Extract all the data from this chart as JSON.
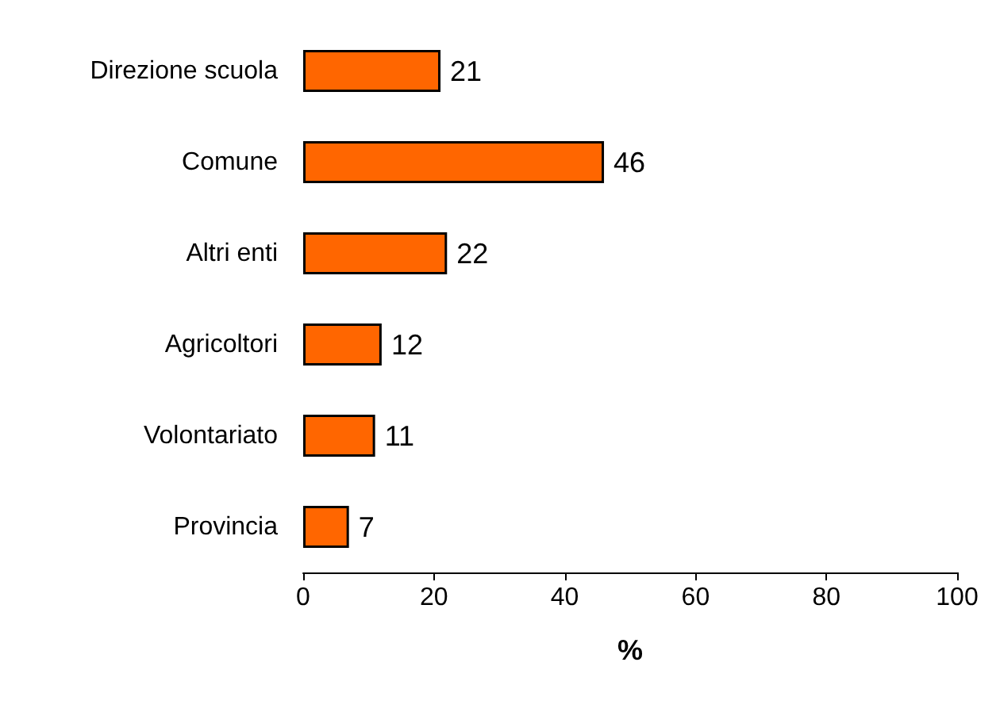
{
  "chart_data": {
    "type": "bar",
    "orientation": "horizontal",
    "xlabel": "%",
    "categories": [
      "Direzione scuola",
      "Comune",
      "Altri enti",
      "Agricoltori",
      "Volontariato",
      "Provincia"
    ],
    "values": [
      21,
      46,
      22,
      12,
      11,
      7
    ],
    "color": "#ff6600",
    "xlim": [
      0,
      100
    ],
    "xticks": [
      0,
      20,
      40,
      60,
      80,
      100
    ],
    "grid": false,
    "data_labels": true
  }
}
